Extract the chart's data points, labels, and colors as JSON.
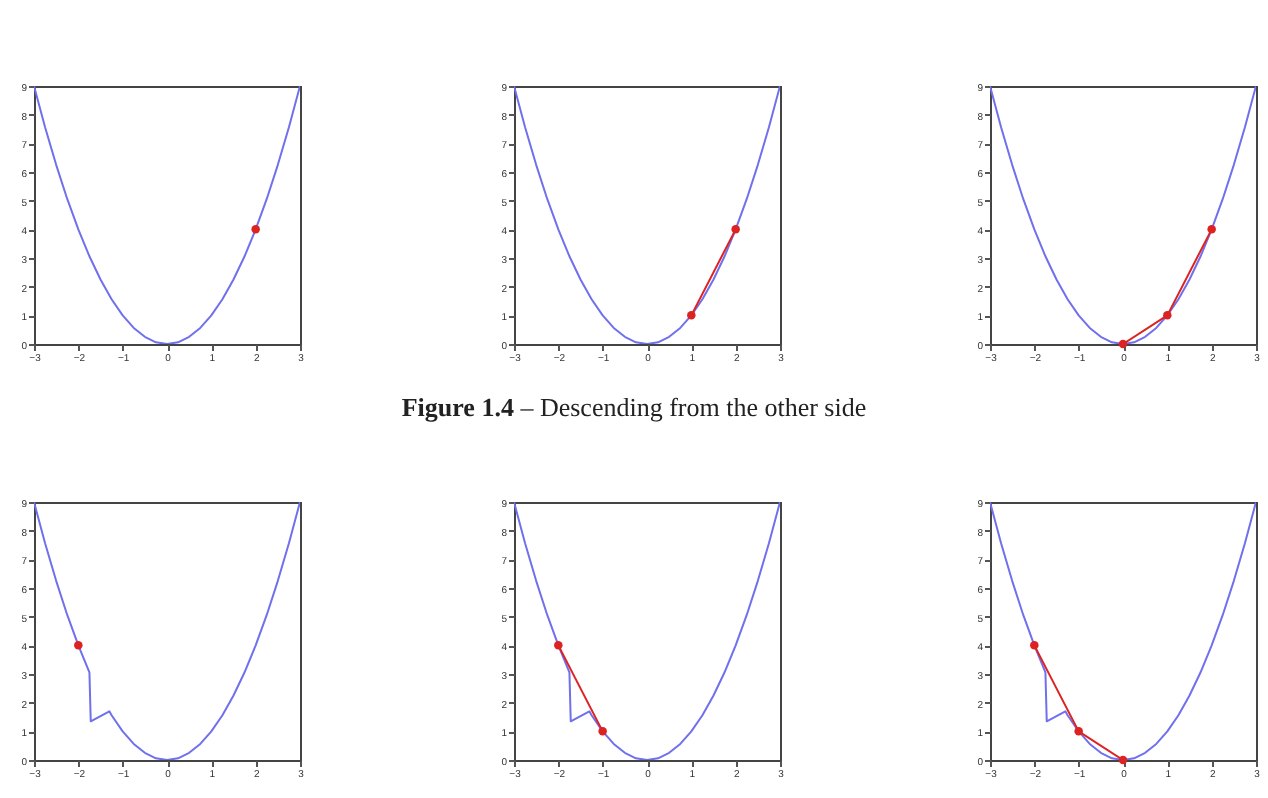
{
  "chart_data": [
    {
      "type": "line",
      "xlim": [
        -3,
        3
      ],
      "ylim": [
        0,
        9
      ],
      "xticks": [
        -3,
        -2,
        -1,
        0,
        1,
        2,
        3
      ],
      "yticks": [
        0,
        1,
        2,
        3,
        4,
        5,
        6,
        7,
        8,
        9
      ],
      "grid": false,
      "series": [
        {
          "color": "#7070ee",
          "marker": "none",
          "x": [
            -3,
            -2.75,
            -2.5,
            -2.25,
            -2,
            -1.75,
            -1.5,
            -1.25,
            -1,
            -0.75,
            -0.5,
            -0.25,
            0,
            0.25,
            0.5,
            0.75,
            1,
            1.25,
            1.5,
            1.75,
            2,
            2.25,
            2.5,
            2.75,
            3
          ],
          "values": [
            9,
            7.56,
            6.25,
            5.06,
            4,
            3.06,
            2.25,
            1.56,
            1,
            0.56,
            0.25,
            0.06,
            0,
            0.06,
            0.25,
            0.56,
            1,
            1.56,
            2.25,
            3.06,
            4,
            5.06,
            6.25,
            7.56,
            9
          ]
        },
        {
          "color": "#dd2222",
          "marker": "circle",
          "x": [
            2
          ],
          "values": [
            4
          ]
        }
      ]
    },
    {
      "type": "line",
      "xlim": [
        -3,
        3
      ],
      "ylim": [
        0,
        9
      ],
      "xticks": [
        -3,
        -2,
        -1,
        0,
        1,
        2,
        3
      ],
      "yticks": [
        0,
        1,
        2,
        3,
        4,
        5,
        6,
        7,
        8,
        9
      ],
      "grid": false,
      "annotations": [
        "Figure 1.4 – Descending from the other side"
      ],
      "series": [
        {
          "color": "#7070ee",
          "marker": "none",
          "x": [
            -3,
            -2.75,
            -2.5,
            -2.25,
            -2,
            -1.75,
            -1.5,
            -1.25,
            -1,
            -0.75,
            -0.5,
            -0.25,
            0,
            0.25,
            0.5,
            0.75,
            1,
            1.25,
            1.5,
            1.75,
            2,
            2.25,
            2.5,
            2.75,
            3
          ],
          "values": [
            9,
            7.56,
            6.25,
            5.06,
            4,
            3.06,
            2.25,
            1.56,
            1,
            0.56,
            0.25,
            0.06,
            0,
            0.06,
            0.25,
            0.56,
            1,
            1.56,
            2.25,
            3.06,
            4,
            5.06,
            6.25,
            7.56,
            9
          ]
        },
        {
          "color": "#dd2222",
          "marker": "circle",
          "x": [
            2,
            1
          ],
          "values": [
            4,
            1
          ]
        }
      ]
    },
    {
      "type": "line",
      "xlim": [
        -3,
        3
      ],
      "ylim": [
        0,
        9
      ],
      "xticks": [
        -3,
        -2,
        -1,
        0,
        1,
        2,
        3
      ],
      "yticks": [
        0,
        1,
        2,
        3,
        4,
        5,
        6,
        7,
        8,
        9
      ],
      "grid": false,
      "series": [
        {
          "color": "#7070ee",
          "marker": "none",
          "x": [
            -3,
            -2.75,
            -2.5,
            -2.25,
            -2,
            -1.75,
            -1.5,
            -1.25,
            -1,
            -0.75,
            -0.5,
            -0.25,
            0,
            0.25,
            0.5,
            0.75,
            1,
            1.25,
            1.5,
            1.75,
            2,
            2.25,
            2.5,
            2.75,
            3
          ],
          "values": [
            9,
            7.56,
            6.25,
            5.06,
            4,
            3.06,
            2.25,
            1.56,
            1,
            0.56,
            0.25,
            0.06,
            0,
            0.06,
            0.25,
            0.56,
            1,
            1.56,
            2.25,
            3.06,
            4,
            5.06,
            6.25,
            7.56,
            9
          ]
        },
        {
          "color": "#dd2222",
          "marker": "circle",
          "x": [
            2,
            1,
            0
          ],
          "values": [
            4,
            1,
            0
          ]
        }
      ]
    },
    {
      "type": "line",
      "xlim": [
        -3,
        3
      ],
      "ylim": [
        0,
        9
      ],
      "xticks": [
        -3,
        -2,
        -1,
        0,
        1,
        2,
        3
      ],
      "yticks": [
        0,
        1,
        2,
        3,
        4,
        5,
        6,
        7,
        8,
        9
      ],
      "grid": false,
      "series": [
        {
          "color": "#7070ee",
          "marker": "none",
          "x": [
            -3,
            -2.75,
            -2.5,
            -2.25,
            -2,
            -1.75,
            -1.72,
            -1.3,
            -1.25,
            -1,
            -0.75,
            -0.5,
            -0.25,
            0,
            0.25,
            0.5,
            0.75,
            1,
            1.25,
            1.5,
            1.75,
            2,
            2.25,
            2.5,
            2.75,
            3
          ],
          "values": [
            9,
            7.56,
            6.25,
            5.06,
            4,
            3.06,
            1.35,
            1.7,
            1.56,
            1,
            0.56,
            0.25,
            0.06,
            0,
            0.06,
            0.25,
            0.56,
            1,
            1.56,
            2.25,
            3.06,
            4,
            5.06,
            6.25,
            7.56,
            9
          ]
        },
        {
          "color": "#dd2222",
          "marker": "circle",
          "x": [
            -2
          ],
          "values": [
            4
          ]
        }
      ]
    },
    {
      "type": "line",
      "xlim": [
        -3,
        3
      ],
      "ylim": [
        0,
        9
      ],
      "xticks": [
        -3,
        -2,
        -1,
        0,
        1,
        2,
        3
      ],
      "yticks": [
        0,
        1,
        2,
        3,
        4,
        5,
        6,
        7,
        8,
        9
      ],
      "grid": false,
      "series": [
        {
          "color": "#7070ee",
          "marker": "none",
          "x": [
            -3,
            -2.75,
            -2.5,
            -2.25,
            -2,
            -1.75,
            -1.72,
            -1.3,
            -1.25,
            -1,
            -0.75,
            -0.5,
            -0.25,
            0,
            0.25,
            0.5,
            0.75,
            1,
            1.25,
            1.5,
            1.75,
            2,
            2.25,
            2.5,
            2.75,
            3
          ],
          "values": [
            9,
            7.56,
            6.25,
            5.06,
            4,
            3.06,
            1.35,
            1.7,
            1.56,
            1,
            0.56,
            0.25,
            0.06,
            0,
            0.06,
            0.25,
            0.56,
            1,
            1.56,
            2.25,
            3.06,
            4,
            5.06,
            6.25,
            7.56,
            9
          ]
        },
        {
          "color": "#dd2222",
          "marker": "circle",
          "x": [
            -2,
            -1
          ],
          "values": [
            4,
            1
          ]
        }
      ]
    },
    {
      "type": "line",
      "xlim": [
        -3,
        3
      ],
      "ylim": [
        0,
        9
      ],
      "xticks": [
        -3,
        -2,
        -1,
        0,
        1,
        2,
        3
      ],
      "yticks": [
        0,
        1,
        2,
        3,
        4,
        5,
        6,
        7,
        8,
        9
      ],
      "grid": false,
      "series": [
        {
          "color": "#7070ee",
          "marker": "none",
          "x": [
            -3,
            -2.75,
            -2.5,
            -2.25,
            -2,
            -1.75,
            -1.72,
            -1.3,
            -1.25,
            -1,
            -0.75,
            -0.5,
            -0.25,
            0,
            0.25,
            0.5,
            0.75,
            1,
            1.25,
            1.5,
            1.75,
            2,
            2.25,
            2.5,
            2.75,
            3
          ],
          "values": [
            9,
            7.56,
            6.25,
            5.06,
            4,
            3.06,
            1.35,
            1.7,
            1.56,
            1,
            0.56,
            0.25,
            0.06,
            0,
            0.06,
            0.25,
            0.56,
            1,
            1.56,
            2.25,
            3.06,
            4,
            5.06,
            6.25,
            7.56,
            9
          ]
        },
        {
          "color": "#dd2222",
          "marker": "circle",
          "x": [
            -2,
            -1,
            0
          ],
          "values": [
            4,
            1,
            0
          ]
        }
      ]
    }
  ]
}
